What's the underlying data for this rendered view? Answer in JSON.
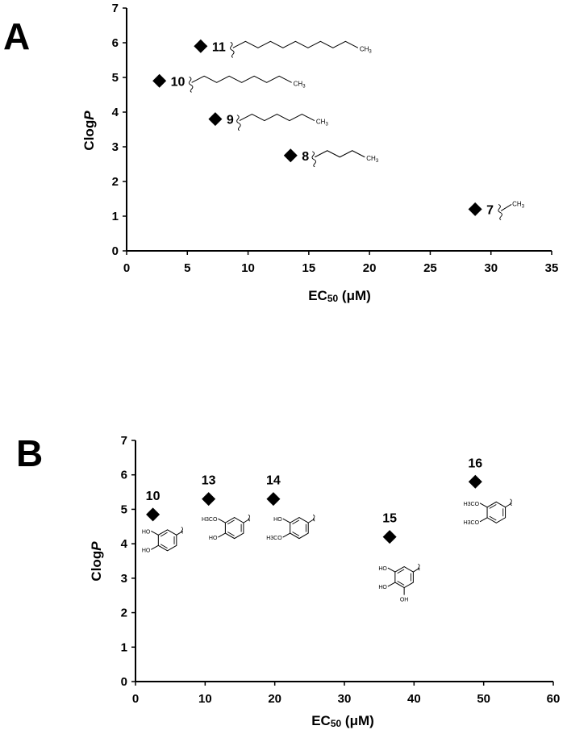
{
  "chart_data": [
    {
      "panel_label": "A",
      "type": "scatter",
      "xlabel": "EC50 (μM)",
      "ylabel": "ClogP",
      "xlim": [
        0,
        35
      ],
      "ylim": [
        0,
        7
      ],
      "xticks": [
        "0",
        "5",
        "10",
        "15",
        "20",
        "25",
        "30",
        "35"
      ],
      "yticks": [
        "0",
        "1",
        "2",
        "3",
        "4",
        "5",
        "6",
        "7"
      ],
      "grid": false,
      "marker": "diamond",
      "points": [
        {
          "label": "11",
          "x": 6.1,
          "y": 5.9,
          "substituent": "C11 alkyl chain",
          "chain_atoms": 10
        },
        {
          "label": "10",
          "x": 2.7,
          "y": 4.9,
          "substituent": "C9 alkyl chain",
          "chain_atoms": 8
        },
        {
          "label": "9",
          "x": 7.3,
          "y": 3.8,
          "substituent": "C7 alkyl chain",
          "chain_atoms": 6
        },
        {
          "label": "8",
          "x": 13.5,
          "y": 2.75,
          "substituent": "C5 alkyl chain",
          "chain_atoms": 4
        },
        {
          "label": "7",
          "x": 28.7,
          "y": 1.2,
          "substituent": "methyl",
          "chain_atoms": 1
        }
      ],
      "chem_text": {
        "ch3": "CH",
        "three": "3"
      }
    },
    {
      "panel_label": "B",
      "type": "scatter",
      "xlabel": "EC50 (μM)",
      "ylabel": "ClogP",
      "xlim": [
        0,
        60
      ],
      "ylim": [
        0,
        7
      ],
      "xticks": [
        "0",
        "10",
        "20",
        "30",
        "40",
        "50",
        "60"
      ],
      "yticks": [
        "0",
        "1",
        "2",
        "3",
        "4",
        "5",
        "6",
        "7"
      ],
      "grid": false,
      "marker": "diamond",
      "points": [
        {
          "label": "10",
          "x": 2.5,
          "y": 4.85,
          "substituent": "3,4-dihydroxyphenyl"
        },
        {
          "label": "13",
          "x": 10.5,
          "y": 5.3,
          "substituent": "3-methoxy-4-hydroxyphenyl"
        },
        {
          "label": "14",
          "x": 19.8,
          "y": 5.3,
          "substituent": "3-hydroxy-4-methoxyphenyl"
        },
        {
          "label": "15",
          "x": 36.5,
          "y": 4.2,
          "substituent": "3,4,5-trihydroxyphenyl"
        },
        {
          "label": "16",
          "x": 48.8,
          "y": 5.8,
          "substituent": "3,4-dimethoxyphenyl"
        }
      ],
      "chem_text": {
        "ho": "HO",
        "oh": "OH",
        "h3co": "H3CO"
      }
    }
  ]
}
